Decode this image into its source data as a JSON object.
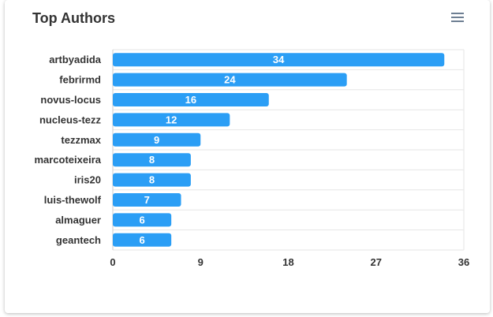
{
  "card": {
    "title": "Top Authors",
    "menu_icon": "hamburger-menu-icon"
  },
  "chart_data": {
    "type": "bar",
    "orientation": "horizontal",
    "categories": [
      "artbyadida",
      "febrirmd",
      "novus-locus",
      "nucleus-tezz",
      "tezzmax",
      "marcoteixeira",
      "iris20",
      "luis-thewolf",
      "almaguer",
      "geantech"
    ],
    "values": [
      34,
      24,
      16,
      12,
      9,
      8,
      8,
      7,
      6,
      6
    ],
    "title": "Top Authors",
    "xlabel": "",
    "ylabel": "",
    "xlim": [
      0,
      36
    ],
    "xticks": [
      0,
      9,
      18,
      27,
      36
    ],
    "grid": true,
    "legend": "none",
    "data_labels": true,
    "bar_color": "#2b9ef5",
    "grid_color": "#e6e6e6",
    "axis_color": "#cccccc"
  }
}
